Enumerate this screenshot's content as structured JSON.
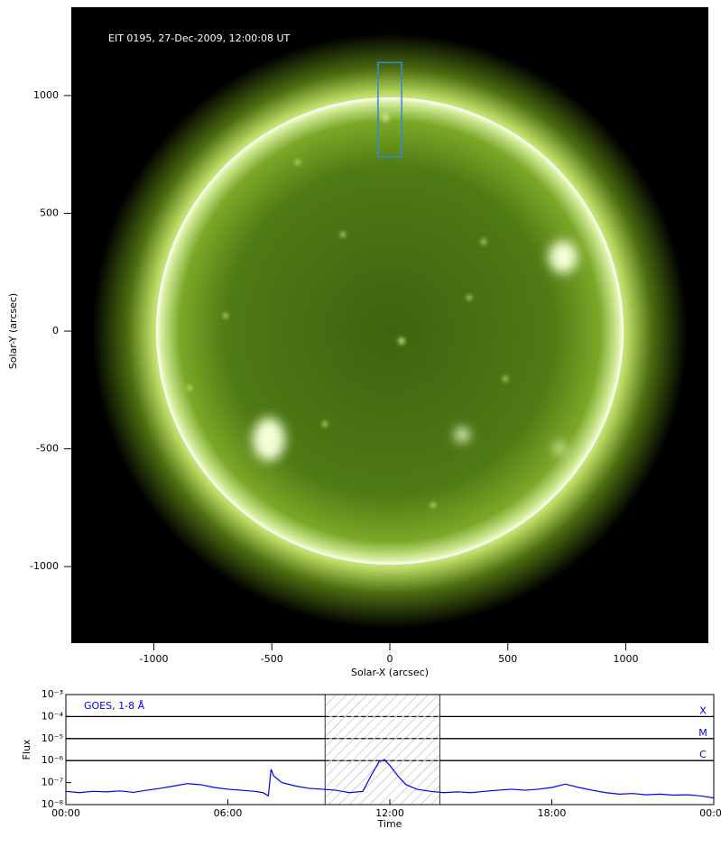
{
  "chart_data": [
    {
      "type": "image",
      "title": "EIT 0195, 27-Dec-2009, 12:00:08 UT",
      "xlabel": "Solar-X (arcsec)",
      "ylabel": "Solar-Y (arcsec)",
      "xlim": [
        -1350,
        1350
      ],
      "ylim": [
        -1325,
        1375
      ],
      "xticks": [
        -1000,
        -500,
        0,
        500,
        1000
      ],
      "yticks": [
        -1000,
        -500,
        0,
        500,
        1000
      ],
      "box": {
        "x": [
          -50,
          50
        ],
        "y": [
          740,
          1140
        ],
        "color": "#2a8fd6"
      }
    },
    {
      "type": "line",
      "title": "GOES, 1-8 Å",
      "xlabel": "Time",
      "ylabel": "Flux",
      "log_y": true,
      "xlim": [
        0,
        24
      ],
      "ylim": [
        1e-08,
        0.001
      ],
      "xticks": [
        {
          "value": 0,
          "label": "00:00"
        },
        {
          "value": 6,
          "label": "06:00"
        },
        {
          "value": 12,
          "label": "12:00"
        },
        {
          "value": 18,
          "label": "18:00"
        },
        {
          "value": 24,
          "label": "00:00"
        }
      ],
      "yticks": [
        {
          "value": 1e-08,
          "label": "10⁻⁸"
        },
        {
          "value": 1e-07,
          "label": "10⁻⁷"
        },
        {
          "value": 1e-06,
          "label": "10⁻⁶"
        },
        {
          "value": 1e-05,
          "label": "10⁻⁵"
        },
        {
          "value": 0.0001,
          "label": "10⁻⁴"
        },
        {
          "value": 0.001,
          "label": "10⁻³"
        }
      ],
      "levels": [
        {
          "value": 0.0001,
          "label": "X"
        },
        {
          "value": 1e-05,
          "label": "M"
        },
        {
          "value": 1e-06,
          "label": "C"
        }
      ],
      "highlight": [
        9.6,
        13.85
      ],
      "series": [
        {
          "color": "#0000ee",
          "x": [
            0,
            0.5,
            1,
            1.5,
            2,
            2.5,
            3,
            3.5,
            4,
            4.5,
            5,
            5.5,
            6,
            6.5,
            7,
            7.3,
            7.5,
            7.6,
            7.7,
            8,
            8.5,
            9,
            9.5,
            10,
            10.5,
            11,
            11.3,
            11.6,
            11.8,
            12,
            12.3,
            12.6,
            13,
            13.5,
            14,
            14.5,
            15,
            15.5,
            16,
            16.5,
            17,
            17.5,
            18,
            18.5,
            19,
            19.5,
            20,
            20.5,
            21,
            21.5,
            22,
            22.5,
            23,
            23.5,
            24
          ],
          "values": [
            4e-08,
            3.5e-08,
            4e-08,
            3.8e-08,
            4.2e-08,
            3.6e-08,
            4.5e-08,
            5.5e-08,
            7e-08,
            9e-08,
            8e-08,
            6e-08,
            5e-08,
            4.5e-08,
            4e-08,
            3.5e-08,
            2.5e-08,
            4e-07,
            2e-07,
            1e-07,
            7e-08,
            5.5e-08,
            5e-08,
            4.5e-08,
            3.5e-08,
            4e-08,
            2e-07,
            9e-07,
            1.1e-06,
            6e-07,
            2e-07,
            8e-08,
            5e-08,
            4e-08,
            3.5e-08,
            3.8e-08,
            3.5e-08,
            4e-08,
            4.5e-08,
            5e-08,
            4.5e-08,
            5e-08,
            6e-08,
            8.5e-08,
            6e-08,
            4.5e-08,
            3.5e-08,
            3e-08,
            3.2e-08,
            2.8e-08,
            3e-08,
            2.7e-08,
            2.8e-08,
            2.5e-08,
            2e-08
          ]
        }
      ]
    }
  ]
}
